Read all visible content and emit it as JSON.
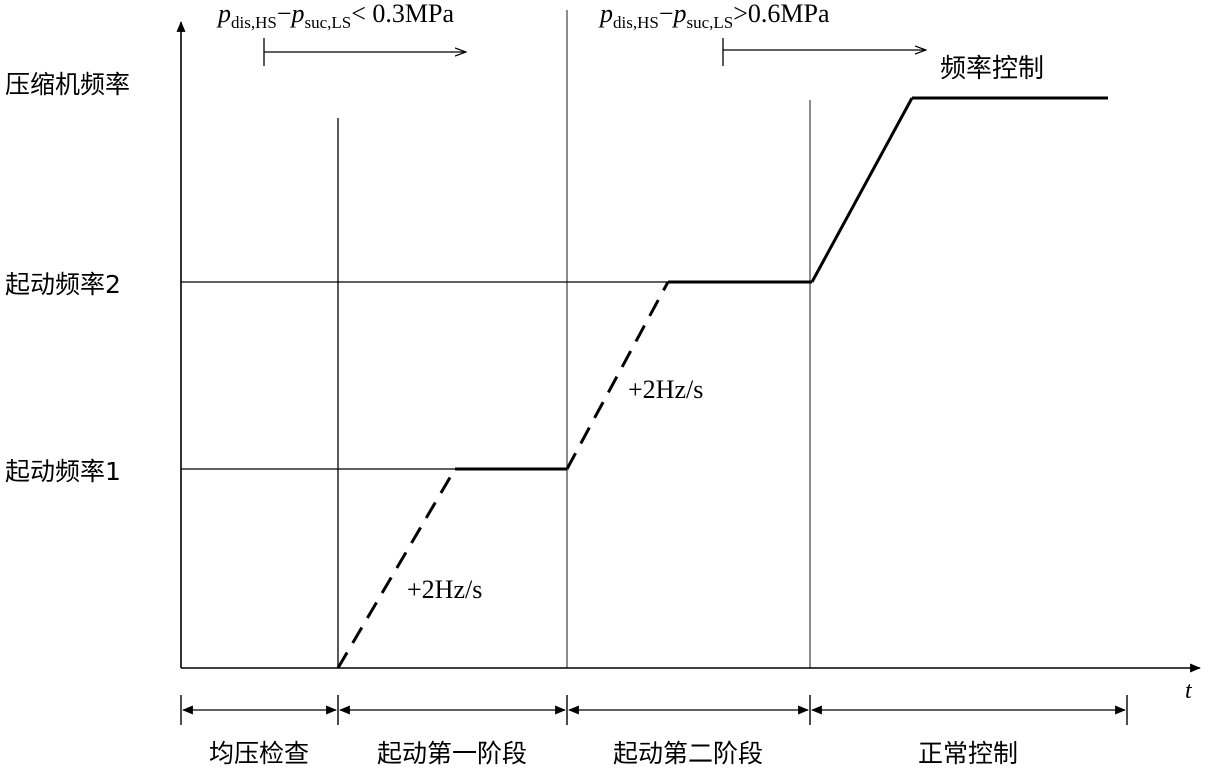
{
  "axes": {
    "y_label": "压缩机频率",
    "x_label": "t"
  },
  "levels": {
    "level1_label": "起动频率1",
    "level2_label": "起动频率2"
  },
  "ramp_rate_label_1": "+2Hz/s",
  "ramp_rate_label_2": "+2Hz/s",
  "frequency_control_label": "频率控制",
  "conditions": [
    {
      "p1": "p",
      "p1_sub": "dis,HS",
      "minus": "−",
      "p2": "p",
      "p2_sub": "suc,LS",
      "operator": "<",
      "value": " 0.3MPa"
    },
    {
      "p1": "p",
      "p1_sub": "dis,HS",
      "minus": "−",
      "p2": "p",
      "p2_sub": "suc,LS",
      "operator": ">",
      "value": "0.6MPa"
    }
  ],
  "phases": [
    "均压检查",
    "起动第一阶段",
    "起动第二阶段",
    "正常控制"
  ],
  "colors": {
    "line": "#000000",
    "background": "#ffffff"
  }
}
